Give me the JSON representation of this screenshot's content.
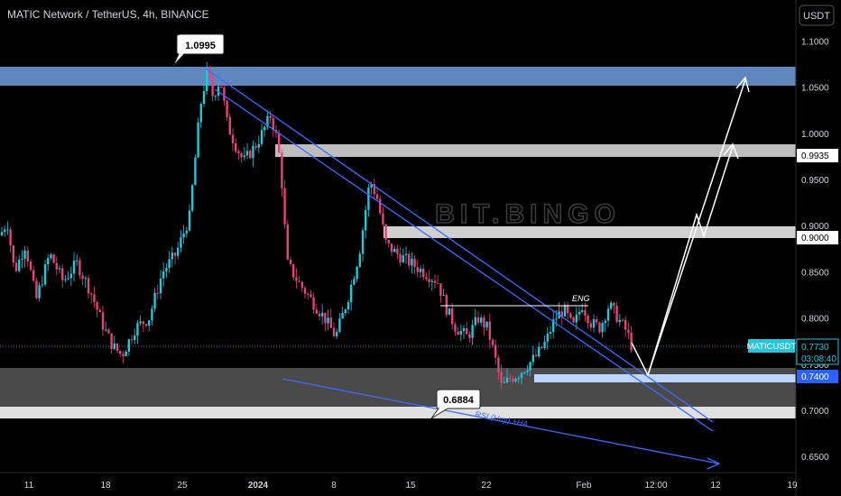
{
  "header": {
    "title": "MATIC Network / TetherUS, 4h, BINANCE",
    "currency_button": "USDT"
  },
  "watermark": "BIT.BINGO",
  "colors": {
    "bull": "#26c6da",
    "bear": "#e0457b",
    "blue_zone": "#5f86bd",
    "grey_zone": "#4a4a4a",
    "light_zone": "#d8d8d8",
    "trendline": "#3d6bff",
    "ticker_badge": "#26c6da",
    "support_badge": "#2962ff"
  },
  "annotations": {
    "high_callout": "1.0995",
    "low_callout": "0.6884",
    "eng_label": "ENG",
    "rsi_label": "RSI (Hay) +HA"
  },
  "price_badges": {
    "ticker": "MATICUSDT",
    "price": "0.7730",
    "countdown": "03:08:40",
    "support": "0.7400",
    "level_0_9935": "0.9935",
    "level_0_9000": "0.9000"
  },
  "chart_data": {
    "type": "candlestick",
    "symbol": "MATICUSDT",
    "timeframe": "4h",
    "x_ticks": [
      "11",
      "18",
      "25",
      "2024",
      "8",
      "15",
      "22",
      "Feb",
      "12:00",
      "12",
      "19"
    ],
    "y_ticks": [
      "1.1000",
      "1.0500",
      "1.0000",
      "0.9500",
      "0.9000",
      "0.8500",
      "0.8000",
      "0.7500",
      "0.7000",
      "0.6500"
    ],
    "ylim": [
      0.633,
      1.145
    ],
    "last_price": 0.773,
    "zones": [
      {
        "name": "resistance-top",
        "from": 1.0745,
        "to": 1.0995
      },
      {
        "name": "resistance-0.99",
        "from": 0.9935,
        "to": 1.0085
      },
      {
        "name": "resistance-0.90",
        "from": 0.9,
        "to": 0.9125
      },
      {
        "name": "support-0.74",
        "from": 0.733,
        "to": 0.74
      },
      {
        "name": "demand",
        "from": 0.714,
        "to": 0.747
      },
      {
        "name": "low",
        "from": 0.6884,
        "to": 0.702
      }
    ],
    "key_prices": {
      "high": 1.0995,
      "low": 0.6884,
      "support": 0.74
    }
  }
}
